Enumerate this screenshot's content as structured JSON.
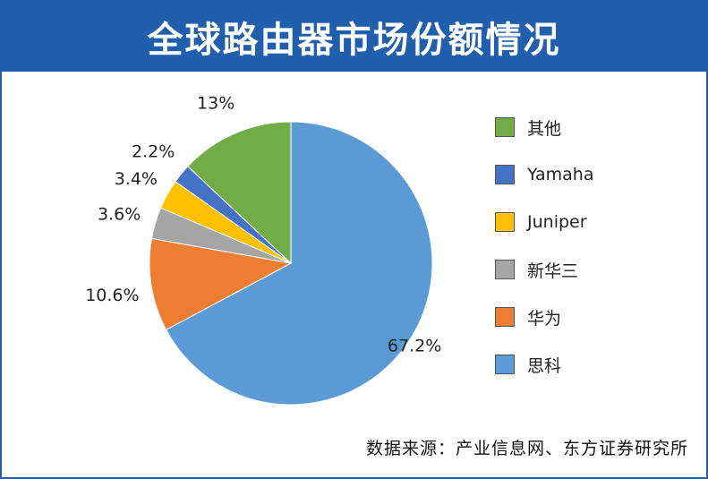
{
  "header": {
    "title": "全球路由器市场份额情况"
  },
  "source": "数据来源：产业信息网、东方证券研究所",
  "chart_data": {
    "type": "pie",
    "slices": [
      {
        "label": "思科",
        "value": 67.2,
        "data_label": "67.2%",
        "color": "#5b9bd5"
      },
      {
        "label": "华为",
        "value": 10.6,
        "data_label": "10.6%",
        "color": "#ed7d31"
      },
      {
        "label": "新华三",
        "value": 3.6,
        "data_label": "3.6%",
        "color": "#a5a5a5"
      },
      {
        "label": "Juniper",
        "value": 3.4,
        "data_label": "3.4%",
        "color": "#ffc000"
      },
      {
        "label": "Yamaha",
        "value": 2.2,
        "data_label": "2.2%",
        "color": "#4472c4"
      },
      {
        "label": "其他",
        "value": 13,
        "data_label": "13%",
        "color": "#70ad47"
      }
    ],
    "legend_order": [
      "其他",
      "Yamaha",
      "Juniper",
      "新华三",
      "华为",
      "思科"
    ],
    "legend_position": "right"
  }
}
